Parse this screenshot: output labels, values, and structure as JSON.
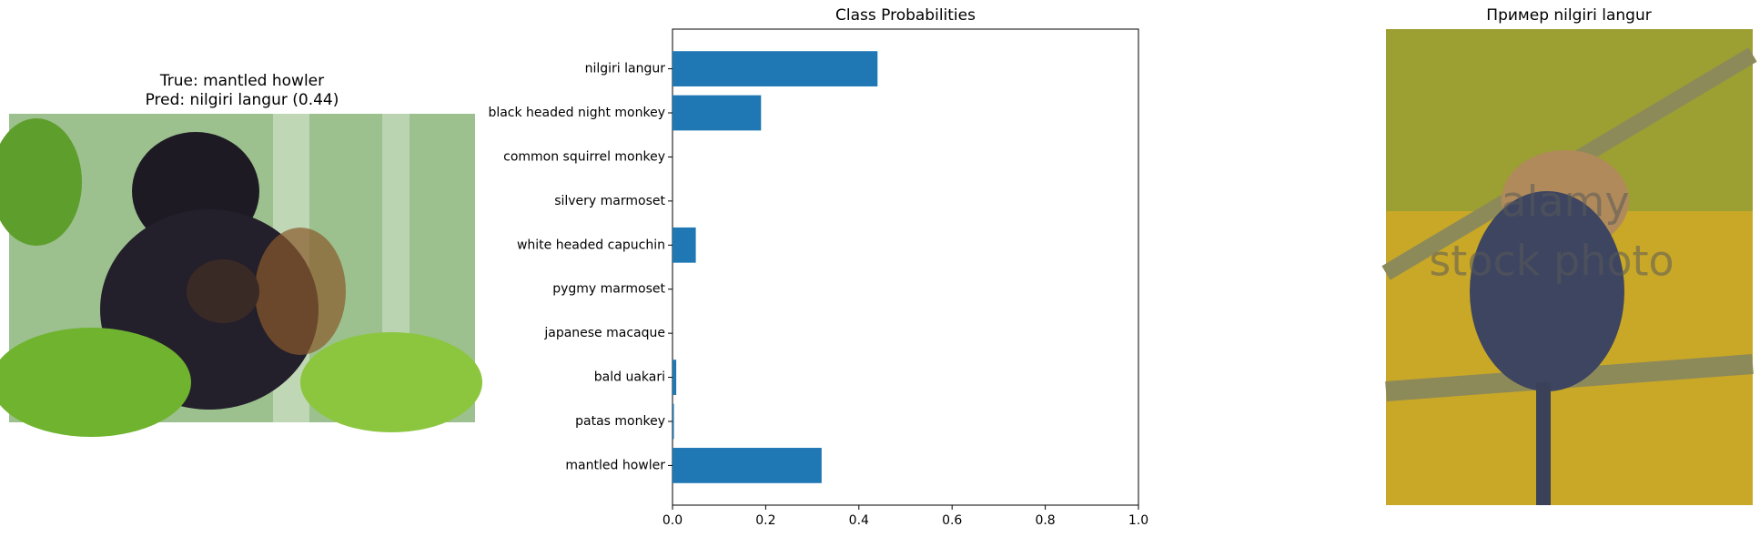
{
  "left_panel": {
    "title_lines": [
      "True: mantled howler",
      "Pred: nilgiri langur (0.44)"
    ]
  },
  "chart_data": {
    "type": "hbar",
    "title": "Class Probabilities",
    "categories": [
      "nilgiri langur",
      "black headed night monkey",
      "common squirrel monkey",
      "silvery marmoset",
      "white headed capuchin",
      "pygmy marmoset",
      "japanese macaque",
      "bald uakari",
      "patas monkey",
      "mantled howler"
    ],
    "values": [
      0.44,
      0.19,
      0,
      0,
      0.05,
      0,
      0,
      0.008,
      0.003,
      0.32
    ],
    "color": "#1f77b4",
    "xlim": [
      0,
      1
    ],
    "xticks": [
      {
        "value": 0,
        "label": "0.0"
      },
      0.2,
      0.4,
      0.6,
      0.8,
      {
        "value": 1,
        "label": "1.0"
      }
    ]
  },
  "right_panel": {
    "title": "Пример nilgiri langur",
    "watermark": [
      "alamy",
      "stock photo"
    ]
  }
}
